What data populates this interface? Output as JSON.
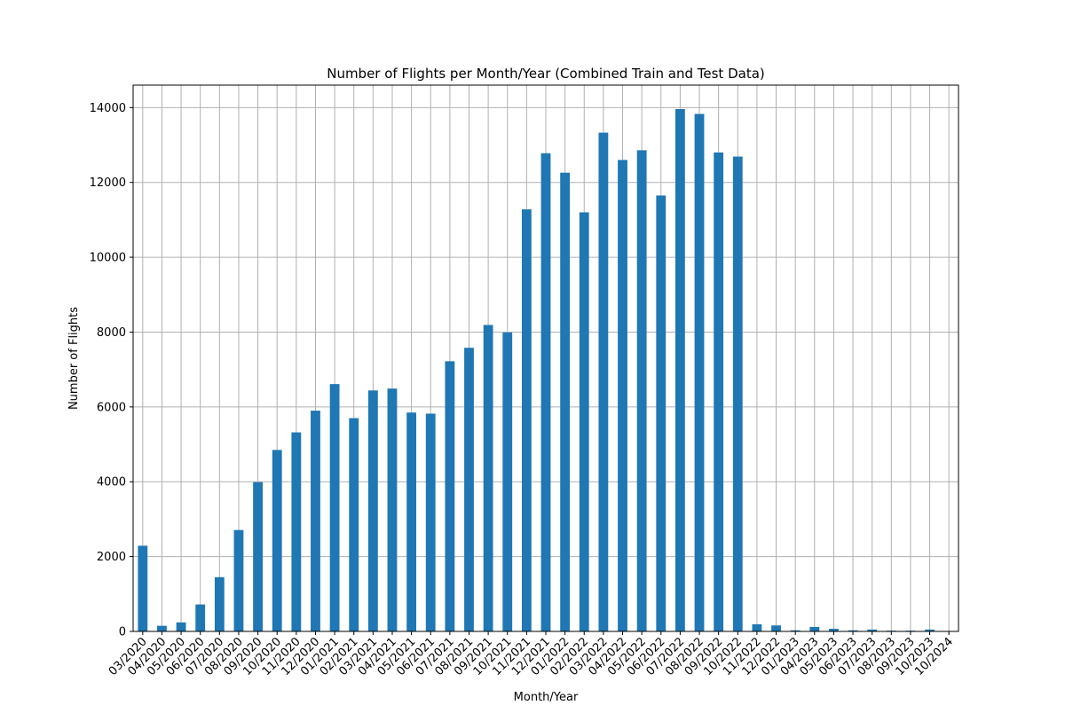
{
  "colors": {
    "bar": "#1f77b4",
    "grid": "#b0b0b0",
    "axes": "#000000",
    "background": "#ffffff"
  },
  "chart_data": {
    "type": "bar",
    "title": "Number of Flights per Month/Year (Combined Train and Test Data)",
    "xlabel": "Month/Year",
    "ylabel": "Number of Flights",
    "categories": [
      "03/2020",
      "04/2020",
      "05/2020",
      "06/2020",
      "07/2020",
      "08/2020",
      "09/2020",
      "10/2020",
      "11/2020",
      "12/2020",
      "01/2021",
      "02/2021",
      "03/2021",
      "04/2021",
      "05/2021",
      "06/2021",
      "07/2021",
      "08/2021",
      "09/2021",
      "10/2021",
      "11/2021",
      "12/2021",
      "01/2022",
      "02/2022",
      "03/2022",
      "04/2022",
      "05/2022",
      "06/2022",
      "07/2022",
      "08/2022",
      "09/2022",
      "10/2022",
      "11/2022",
      "12/2022",
      "01/2023",
      "04/2023",
      "05/2023",
      "06/2023",
      "07/2023",
      "08/2023",
      "09/2023",
      "10/2023",
      "10/2024"
    ],
    "values": [
      2290,
      150,
      240,
      720,
      1450,
      2710,
      3990,
      4850,
      5320,
      5900,
      6610,
      5700,
      6440,
      6490,
      5850,
      5820,
      7220,
      7580,
      8190,
      7990,
      11280,
      12780,
      12260,
      11200,
      13330,
      12600,
      12860,
      11650,
      13960,
      13830,
      12800,
      12690,
      190,
      160,
      30,
      120,
      70,
      30,
      50,
      20,
      20,
      50,
      0
    ],
    "ylim": [
      0,
      14600
    ],
    "yticks": [
      0,
      2000,
      4000,
      6000,
      8000,
      10000,
      12000,
      14000
    ],
    "ytick_labels": [
      "0",
      "2000",
      "4000",
      "6000",
      "8000",
      "10000",
      "12000",
      "14000"
    ],
    "x_tick_rotation_deg": 45,
    "grid": true,
    "legend": "none"
  }
}
